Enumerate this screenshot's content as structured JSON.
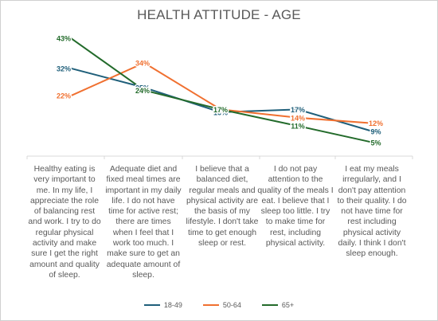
{
  "chart_data": {
    "type": "line",
    "title": "HEALTH ATTITUDE - AGE",
    "categories": [
      "Healthy eating is very important to me. In my life, I appreciate the role of balancing rest and work. I try to do regular physical activity and make sure I get the right amount and quality of sleep.",
      "Adequate diet and fixed meal times are important in my daily life. I do not have time for active rest; there are times when I feel that I work too much. I make sure to get an adequate amount of sleep.",
      "I believe that a balanced diet, regular meals and physical activity are the basis of my lifestyle. I don't take time to get enough sleep or rest.",
      "I do not pay attention to the quality of the meals I eat. I believe that I sleep too little. I try to make time for rest, including physical activity.",
      "I eat my meals irregularly, and I don't pay attention to their quality. I do not have time for rest including physical activity daily. I think I don't sleep enough."
    ],
    "series": [
      {
        "name": "18-49",
        "color": "#1f5f7a",
        "values": [
          32,
          25,
          16,
          17,
          9
        ],
        "labels": [
          "32%",
          "25%",
          "16%",
          "17%",
          "9%"
        ]
      },
      {
        "name": "50-64",
        "color": "#f07030",
        "values": [
          22,
          34,
          17,
          14,
          12
        ],
        "labels": [
          "22%",
          "34%",
          "17%",
          "14%",
          "12%"
        ]
      },
      {
        "name": "65+",
        "color": "#236b2b",
        "values": [
          43,
          24,
          17,
          11,
          5
        ],
        "labels": [
          "43%",
          "24%",
          "17%",
          "11%",
          "5%"
        ]
      }
    ],
    "ylim": [
      0,
      45
    ],
    "legend_position": "bottom",
    "grid": false
  }
}
